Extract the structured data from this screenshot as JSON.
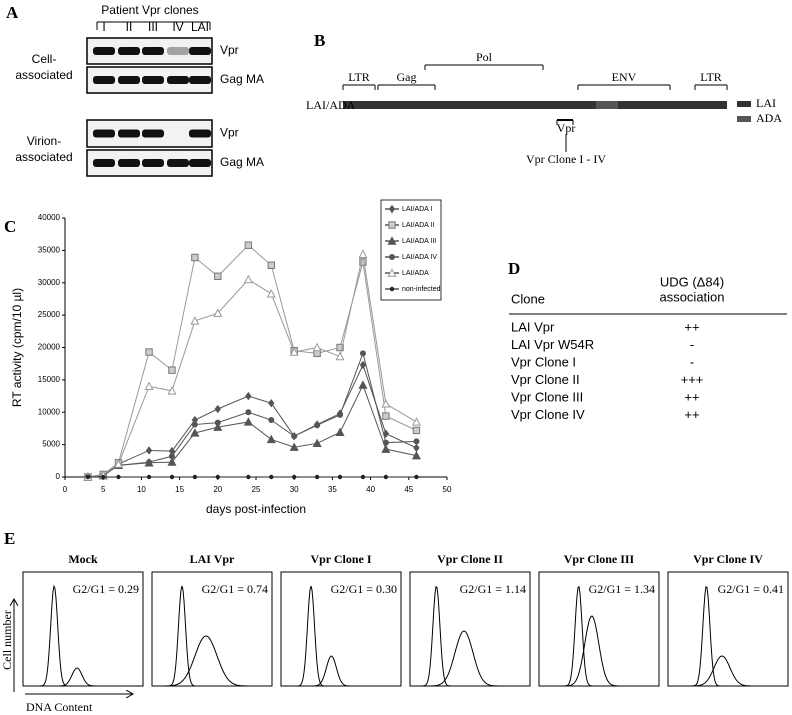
{
  "panel_labels": [
    "A",
    "B",
    "C",
    "D",
    "E"
  ],
  "panel_a": {
    "title": "Patient Vpr clones",
    "lanes": [
      "I",
      "II",
      "III",
      "IV",
      "LAI"
    ],
    "groups": [
      {
        "label": [
          "Cell-",
          "associated"
        ],
        "rows": [
          "Vpr",
          "Gag MA"
        ]
      },
      {
        "label": [
          "Virion-",
          "associated"
        ],
        "rows": [
          "Vpr",
          "Gag MA"
        ]
      }
    ]
  },
  "panel_b": {
    "features": [
      "LTR",
      "Gag",
      "Pol",
      "ENV",
      "LTR"
    ],
    "construct": "LAI/ADA",
    "legend": [
      "LAI",
      "ADA"
    ],
    "gene": "Vpr",
    "gene_note": "Vpr Clone I - IV"
  },
  "chart_data": {
    "type": "line",
    "xlabel": "days post-infection",
    "ylabel": "RT activity (cpm/10 µl)",
    "x": [
      3,
      5,
      7,
      11,
      14,
      17,
      20,
      24,
      27,
      30,
      33,
      36,
      39,
      42,
      46
    ],
    "series": [
      {
        "name": "LAI/ADA I",
        "color": "#555555",
        "marker": "diamond",
        "values": [
          0,
          300,
          2000,
          4100,
          4000,
          8800,
          10500,
          12500,
          11400,
          6300,
          8100,
          9800,
          17300,
          6700,
          4500
        ]
      },
      {
        "name": "LAI/ADA II",
        "color": "#999999",
        "marker": "square",
        "values": [
          0,
          400,
          2200,
          19300,
          16500,
          33900,
          31000,
          35800,
          32700,
          19500,
          19100,
          20000,
          33200,
          9400,
          7200
        ]
      },
      {
        "name": "LAI/ADA III",
        "color": "#555555",
        "marker": "triangle",
        "values": [
          0,
          200,
          1800,
          2200,
          2300,
          6800,
          7700,
          8500,
          5800,
          4600,
          5200,
          6900,
          14200,
          4300,
          3300
        ]
      },
      {
        "name": "LAI/ADA IV",
        "color": "#555555",
        "marker": "circle",
        "values": [
          0,
          250,
          1800,
          2300,
          3200,
          8100,
          8400,
          10000,
          8800,
          6300,
          8000,
          9600,
          19100,
          5300,
          5500
        ]
      },
      {
        "name": "LAI/ADA",
        "color": "#999999",
        "marker": "open-triangle",
        "values": [
          0,
          300,
          2000,
          14000,
          13300,
          24100,
          25300,
          30500,
          28300,
          19300,
          20000,
          18600,
          34400,
          11300,
          8500
        ]
      },
      {
        "name": "non-infected",
        "color": "#222222",
        "marker": "dot",
        "values": [
          0,
          0,
          0,
          0,
          0,
          0,
          0,
          0,
          0,
          0,
          0,
          0,
          0,
          0,
          0
        ]
      }
    ],
    "xlim": [
      0,
      50
    ],
    "xticks": [
      0,
      5,
      10,
      15,
      20,
      25,
      30,
      35,
      40,
      45,
      50
    ],
    "ylim": [
      0,
      40000
    ],
    "yticks": [
      0,
      5000,
      10000,
      15000,
      20000,
      25000,
      30000,
      35000,
      40000
    ],
    "legend": "upper right"
  },
  "panel_d": {
    "header": {
      "clone": "Clone",
      "association": [
        "UDG (Δ84)",
        "association"
      ]
    },
    "rows": [
      [
        "LAI Vpr",
        "++"
      ],
      [
        "LAI Vpr W54R",
        "-"
      ],
      [
        "Vpr Clone I",
        "-"
      ],
      [
        "Vpr Clone II",
        "+++"
      ],
      [
        "Vpr Clone III",
        "++"
      ],
      [
        "Vpr Clone IV",
        "++"
      ]
    ]
  },
  "panel_e": {
    "panels": [
      {
        "title": "Mock",
        "ratio": "G2/G1 = 0.29"
      },
      {
        "title": "LAI Vpr",
        "ratio": "G2/G1 = 0.74"
      },
      {
        "title": "Vpr Clone I",
        "ratio": "G2/G1 = 0.30"
      },
      {
        "title": "Vpr Clone II",
        "ratio": "G2/G1 = 1.14"
      },
      {
        "title": "Vpr Clone III",
        "ratio": "G2/G1 = 1.34"
      },
      {
        "title": "Vpr Clone IV",
        "ratio": "G2/G1 = 0.41"
      }
    ],
    "y_label": "Cell number",
    "x_label": "DNA Content"
  }
}
